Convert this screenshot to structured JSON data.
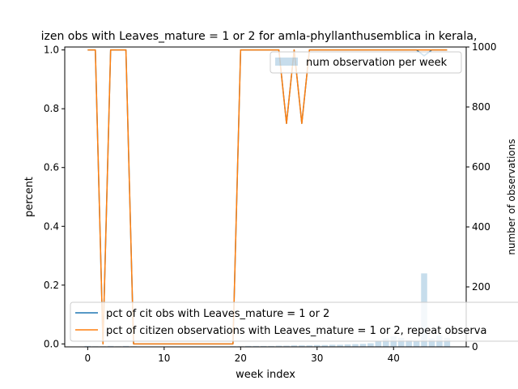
{
  "chart_data": {
    "type": "line",
    "title": "izen obs with Leaves_mature = 1 or 2 for amla-phyllanthusemblica in kerala,",
    "xlabel": "week index",
    "ylabel": "percent",
    "y2label": "number of observations",
    "xlim": [
      -3,
      49.5
    ],
    "ylim": [
      -0.01,
      1.01
    ],
    "y2lim": [
      0,
      1000
    ],
    "xticks": [
      0,
      10,
      20,
      30,
      40
    ],
    "yticks": [
      0.0,
      0.2,
      0.4,
      0.6,
      0.8,
      1.0
    ],
    "y2ticks": [
      0,
      200,
      400,
      600,
      800,
      1000
    ],
    "x": [
      0,
      1,
      2,
      3,
      4,
      5,
      6,
      7,
      8,
      9,
      10,
      11,
      12,
      13,
      14,
      15,
      16,
      17,
      18,
      19,
      20,
      21,
      22,
      23,
      24,
      25,
      26,
      27,
      28,
      29,
      30,
      31,
      32,
      33,
      34,
      35,
      36,
      37,
      38,
      39,
      40,
      41,
      42,
      43,
      44,
      45,
      46,
      47
    ],
    "series": [
      {
        "name": "pct of cit obs with Leaves_mature = 1 or 2",
        "color": "#1f77b4",
        "values": [
          1,
          1,
          0,
          1,
          1,
          1,
          0,
          0,
          0,
          0,
          0,
          0,
          0,
          0,
          0,
          0,
          0,
          0,
          0,
          0,
          1,
          1,
          1,
          1,
          1,
          1,
          0.75,
          1,
          0.75,
          1,
          1,
          1,
          1,
          1,
          1,
          1,
          1,
          1,
          1,
          1,
          1,
          1,
          1,
          1,
          0.98,
          1,
          1,
          1
        ]
      },
      {
        "name": "pct of citizen observations with Leaves_mature = 1 or 2, repeat observa",
        "color": "#ff7f0e",
        "values": [
          1,
          1,
          0,
          1,
          1,
          1,
          0,
          0,
          0,
          0,
          0,
          0,
          0,
          0,
          0,
          0,
          0,
          0,
          0,
          0,
          1,
          1,
          1,
          1,
          1,
          1,
          0.75,
          1,
          0.75,
          1,
          1,
          1,
          1,
          1,
          1,
          1,
          1,
          1,
          1,
          1,
          1,
          1,
          1,
          1,
          1,
          1,
          1,
          1
        ]
      }
    ],
    "bars": {
      "name": "num observation per week",
      "color": "#1f77b4",
      "alpha": 0.25,
      "values": [
        3,
        2,
        2,
        3,
        2,
        3,
        2,
        1,
        1,
        1,
        1,
        1,
        1,
        1,
        1,
        1,
        1,
        1,
        1,
        2,
        2,
        3,
        3,
        3,
        3,
        4,
        4,
        5,
        5,
        5,
        6,
        6,
        7,
        7,
        8,
        9,
        10,
        12,
        20,
        28,
        35,
        30,
        22,
        18,
        245,
        28,
        38,
        30
      ]
    },
    "legend_bottom_position": "lower-left",
    "legend_top_position": "upper-right",
    "grid": false
  }
}
